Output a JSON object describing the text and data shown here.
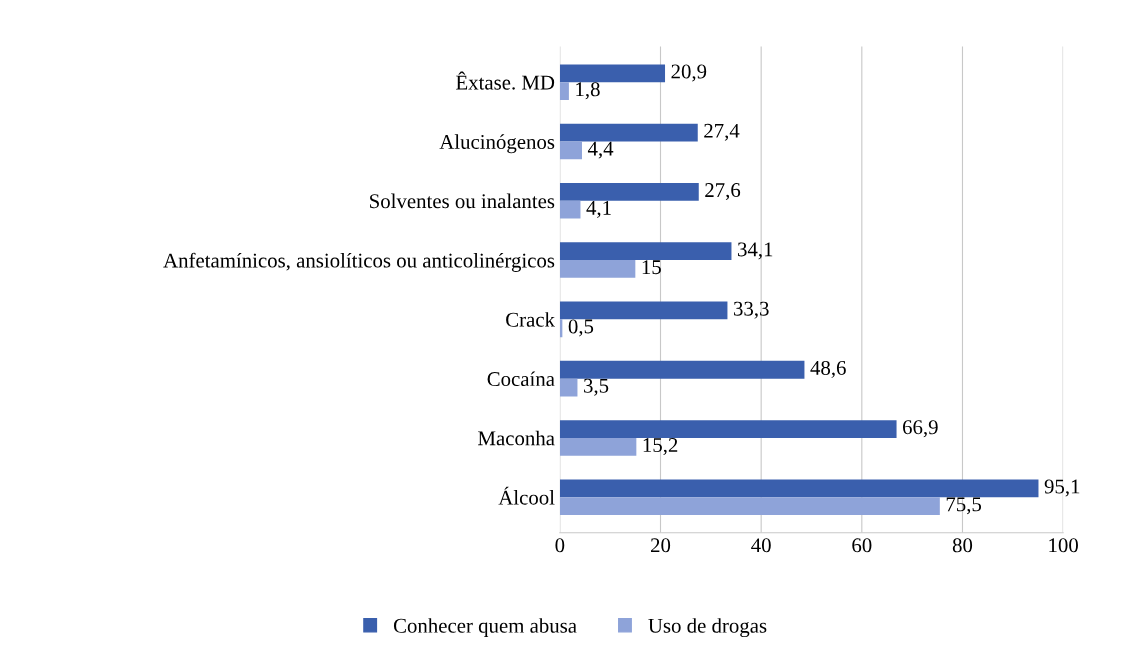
{
  "chart_data": {
    "type": "bar",
    "orientation": "horizontal",
    "categories": [
      "Êxtase. MD",
      "Alucinógenos",
      "Solventes ou inalantes",
      "Anfetamínicos, ansiolíticos ou anticolinérgicos",
      "Crack",
      "Cocaína",
      "Maconha",
      "Álcool"
    ],
    "series": [
      {
        "name": "Conhecer quem abusa",
        "color": "#3a5fad",
        "values": [
          20.9,
          27.4,
          27.6,
          34.1,
          33.3,
          48.6,
          66.9,
          95.1
        ],
        "value_labels": [
          "20,9",
          "27,4",
          "27,6",
          "34,1",
          "33,3",
          "48,6",
          "66,9",
          "95,1"
        ]
      },
      {
        "name": "Uso de drogas",
        "color": "#8ea3d9",
        "values": [
          1.8,
          4.4,
          4.1,
          15,
          0.5,
          3.5,
          15.2,
          75.5
        ],
        "value_labels": [
          "1,8",
          "4,4",
          "4,1",
          "15",
          "0,5",
          "3,5",
          "15,2",
          "75,5"
        ]
      }
    ],
    "xlim": [
      0,
      100
    ],
    "xticks": [
      0,
      20,
      40,
      60,
      80,
      100
    ],
    "grid": "x",
    "legend": "bottom"
  }
}
